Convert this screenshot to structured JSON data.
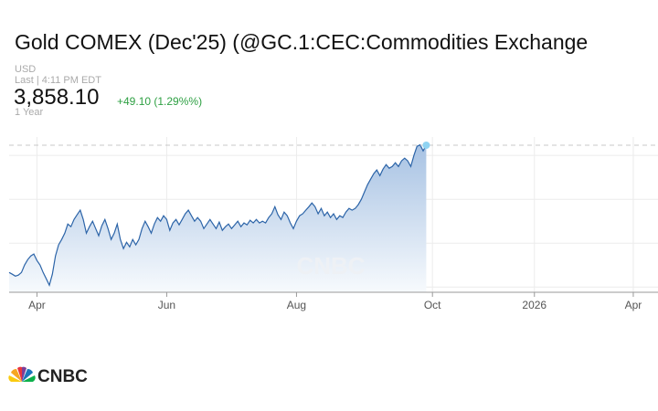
{
  "title": "Gold COMEX (Dec'25) (@GC.1:CEC:Commodities Exchange",
  "currency": "USD",
  "last_update": "Last | 4:11 PM EDT",
  "price": "3,858.10",
  "change": "+49.10 (1.29%%)",
  "range": "1 Year",
  "logo_text": "CNBC",
  "chart_data": {
    "type": "area",
    "color": "#2c64a8",
    "values": [
      3133,
      3123,
      3112,
      3118,
      3133,
      3175,
      3206,
      3227,
      3238,
      3201,
      3175,
      3133,
      3097,
      3060,
      3123,
      3227,
      3290,
      3321,
      3357,
      3409,
      3394,
      3435,
      3462,
      3488,
      3435,
      3357,
      3394,
      3425,
      3383,
      3342,
      3399,
      3435,
      3383,
      3321,
      3357,
      3409,
      3321,
      3269,
      3305,
      3279,
      3321,
      3290,
      3321,
      3383,
      3425,
      3394,
      3357,
      3409,
      3446,
      3425,
      3456,
      3435,
      3373,
      3415,
      3435,
      3404,
      3435,
      3467,
      3488,
      3456,
      3425,
      3446,
      3425,
      3383,
      3409,
      3435,
      3409,
      3383,
      3420,
      3373,
      3394,
      3409,
      3383,
      3404,
      3425,
      3394,
      3415,
      3404,
      3430,
      3415,
      3435,
      3415,
      3425,
      3415,
      3446,
      3467,
      3508,
      3462,
      3435,
      3477,
      3456,
      3415,
      3383,
      3425,
      3456,
      3467,
      3488,
      3508,
      3529,
      3508,
      3467,
      3498,
      3456,
      3477,
      3446,
      3467,
      3435,
      3456,
      3446,
      3477,
      3498,
      3488,
      3498,
      3519,
      3550,
      3592,
      3633,
      3665,
      3696,
      3717,
      3685,
      3722,
      3748,
      3727,
      3737,
      3758,
      3737,
      3769,
      3784,
      3769,
      3737,
      3800,
      3852,
      3860,
      3826,
      3858.1
    ],
    "xlim": [
      0,
      210
    ],
    "xticks": [
      {
        "value": 9,
        "label": "Apr"
      },
      {
        "value": 51,
        "label": "Jun"
      },
      {
        "value": 93,
        "label": "Aug"
      },
      {
        "value": 137,
        "label": "Oct"
      },
      {
        "value": 170,
        "label": "2026"
      },
      {
        "value": 202,
        "label": "Apr"
      }
    ],
    "ylim": [
      3020,
      3905
    ],
    "yticks": [
      3050,
      3300,
      3550,
      3800
    ],
    "grid": true
  }
}
